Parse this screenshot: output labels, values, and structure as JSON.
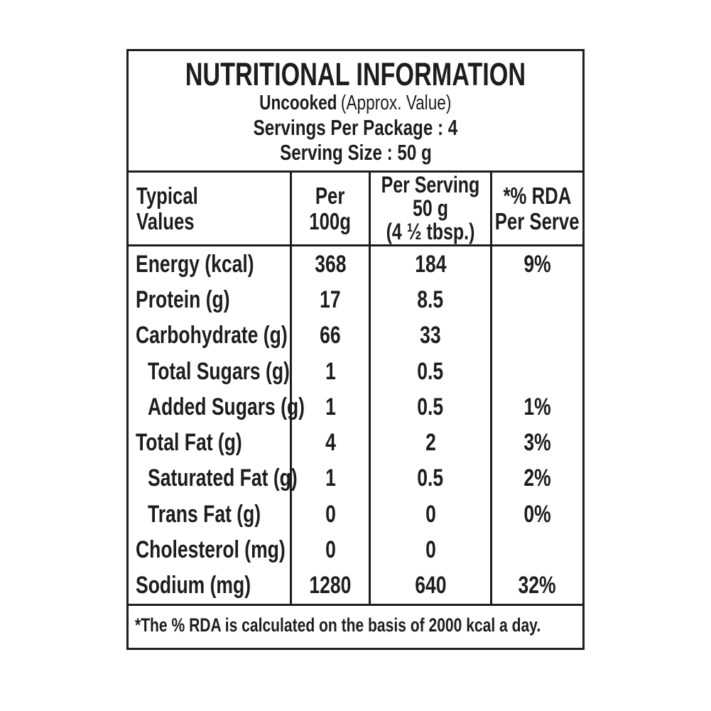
{
  "colors": {
    "ink": "#1d1d1b",
    "paper": "#ffffff"
  },
  "header": {
    "title": "NUTRITIONAL INFORMATION",
    "state_bold": "Uncooked",
    "state_note": "(Approx. Value)",
    "servings_per_package": "Servings Per Package : 4",
    "serving_size": "Serving Size : 50 g"
  },
  "table": {
    "columns": {
      "typical_values": [
        "Typical",
        "Values"
      ],
      "per_100g": [
        "Per",
        "100g"
      ],
      "per_serving": [
        "Per Serving",
        "50 g",
        "(4 ½ tbsp.)"
      ],
      "rda": [
        "*% RDA",
        "Per Serve"
      ]
    },
    "rows": [
      {
        "label": "Energy (kcal)",
        "per_100g": "368",
        "per_serving": "184",
        "rda": "9%"
      },
      {
        "label": "Protein (g)",
        "per_100g": "17",
        "per_serving": "8.5",
        "rda": ""
      },
      {
        "label": "Carbohydrate (g)",
        "per_100g": "66",
        "per_serving": "33",
        "rda": ""
      },
      {
        "label": "Total Sugars (g)",
        "per_100g": "1",
        "per_serving": "0.5",
        "rda": ""
      },
      {
        "label": "Added Sugars (g)",
        "per_100g": "1",
        "per_serving": "0.5",
        "rda": "1%"
      },
      {
        "label": "Total Fat (g)",
        "per_100g": "4",
        "per_serving": "2",
        "rda": "3%"
      },
      {
        "label": "Saturated Fat (g)",
        "per_100g": "1",
        "per_serving": "0.5",
        "rda": "2%"
      },
      {
        "label": "Trans Fat (g)",
        "per_100g": "0",
        "per_serving": "0",
        "rda": "0%"
      },
      {
        "label": "Cholesterol (mg)",
        "per_100g": "0",
        "per_serving": "0",
        "rda": ""
      },
      {
        "label": "Sodium (mg)",
        "per_100g": "1280",
        "per_serving": "640",
        "rda": "32%"
      }
    ],
    "footnote": "*The % RDA is calculated on the basis of 2000 kcal a day."
  }
}
